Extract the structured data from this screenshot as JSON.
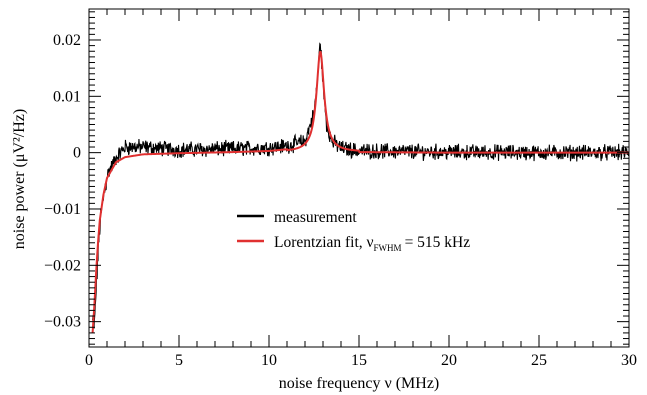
{
  "chart_data": {
    "type": "line",
    "xlabel": "noise frequency ν (MHz)",
    "ylabel": "noise power (μV²/Hz)",
    "xlim": [
      0,
      30
    ],
    "ylim": [
      -0.0345,
      0.0255
    ],
    "x_ticks": [
      0,
      5,
      10,
      15,
      20,
      25,
      30
    ],
    "x_tick_labels": [
      "0",
      "5",
      "10",
      "15",
      "20",
      "25",
      "30"
    ],
    "y_ticks": [
      0.02,
      0.01,
      0,
      -0.01,
      -0.02,
      -0.03
    ],
    "y_tick_labels": [
      "0.02",
      "0.01",
      "0",
      "−0.01",
      "−0.02",
      "−0.03"
    ],
    "grid": false,
    "legend_position": "center",
    "legend": {
      "measurement": "measurement",
      "fit_prefix": "Lorentzian fit, ν",
      "fit_subscript": "FWHM",
      "fit_suffix": "= 515 kHz"
    },
    "peak": {
      "center_mhz": 12.85,
      "fwhm_mhz": 0.515,
      "height": 0.0178
    },
    "series": [
      {
        "name": "measurement",
        "color": "#000000",
        "x": [
          0.2,
          0.3,
          0.4,
          0.5,
          0.6,
          0.8,
          1.0,
          1.5,
          2.0,
          3.0,
          5.0,
          8.0,
          10.0,
          11.0,
          12.0,
          12.5,
          12.7,
          12.85,
          13.0,
          13.2,
          13.5,
          14.0,
          15.0,
          20.0,
          25.0,
          30.0
        ],
        "y": [
          -0.03,
          -0.031,
          -0.024,
          -0.018,
          -0.013,
          -0.008,
          -0.004,
          -0.001,
          0.001,
          0.001,
          0.0005,
          0.0007,
          0.0009,
          0.0012,
          0.002,
          0.007,
          0.013,
          0.02,
          0.012,
          0.005,
          0.002,
          0.0008,
          0.0003,
          0.0001,
          0.0,
          0.0
        ]
      },
      {
        "name": "Lorentzian fit",
        "color": "#e03030",
        "x": [
          0.2,
          0.3,
          0.4,
          0.5,
          0.6,
          0.8,
          1.0,
          1.5,
          2.0,
          3.0,
          5.0,
          8.0,
          10.0,
          11.0,
          12.0,
          12.5,
          12.7,
          12.85,
          13.0,
          13.2,
          13.5,
          14.0,
          15.0,
          20.0,
          25.0,
          30.0
        ],
        "y": [
          -0.032,
          -0.027,
          -0.021,
          -0.016,
          -0.012,
          -0.0075,
          -0.0045,
          -0.0017,
          -0.0008,
          -0.0003,
          -0.0001,
          0.0001,
          0.0003,
          0.0006,
          0.0015,
          0.0055,
          0.0119,
          0.0178,
          0.0119,
          0.0049,
          0.0014,
          0.0005,
          0.0001,
          0.0,
          0.0,
          0.0
        ]
      }
    ]
  }
}
